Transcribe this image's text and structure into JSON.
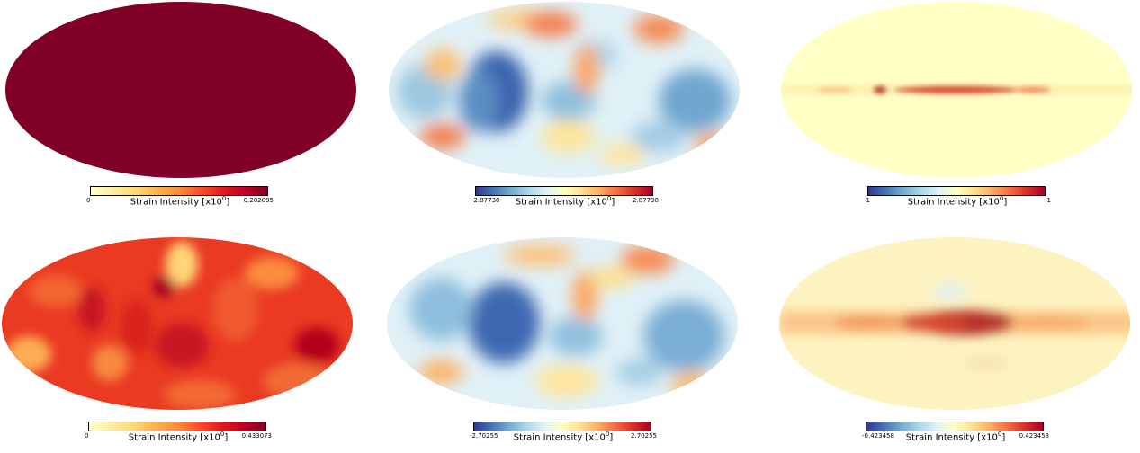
{
  "colorbar_label_prefix": "Strain Intensity [x10",
  "colorbar_label_exp": "0",
  "colorbar_label_suffix": "]",
  "colormaps": {
    "sequential": "YlOrRd",
    "diverging": "RdYlBu_r"
  },
  "panels": [
    {
      "id": "p1",
      "cmap": "sequential",
      "min": "0",
      "max": "0.282095",
      "pattern": "uniform"
    },
    {
      "id": "p2",
      "cmap": "diverging",
      "min": "-2.87738",
      "max": "2.87738",
      "pattern": "blobs"
    },
    {
      "id": "p3",
      "cmap": "diverging",
      "min": "-1",
      "max": "1",
      "pattern": "band-thin"
    },
    {
      "id": "p4",
      "cmap": "sequential",
      "min": "0",
      "max": "0.433073",
      "pattern": "fluctuating"
    },
    {
      "id": "p5",
      "cmap": "diverging",
      "min": "-2.70255",
      "max": "2.70255",
      "pattern": "blobs"
    },
    {
      "id": "p6",
      "cmap": "diverging",
      "min": "-0.423458",
      "max": "0.423458",
      "pattern": "band-wide"
    }
  ]
}
